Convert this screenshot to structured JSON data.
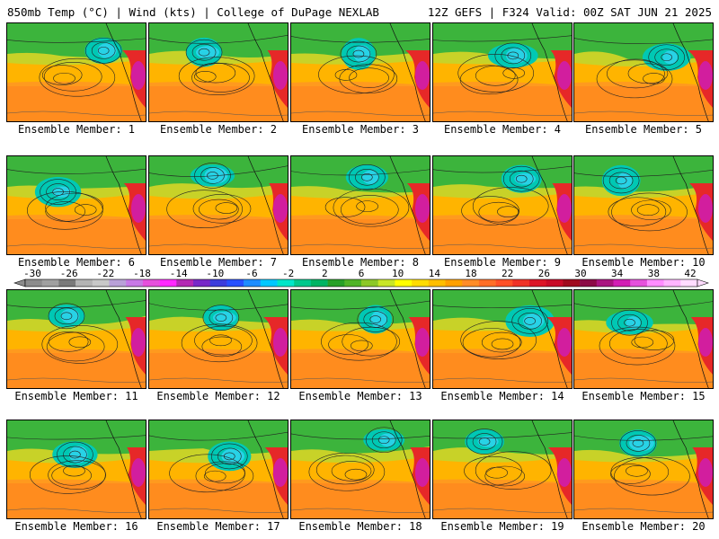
{
  "header": {
    "left_title": "850mb Temp (°C) | Wind (kts) | College of DuPage NEXLAB",
    "right_title": "12Z GEFS | F324 Valid: 00Z SAT JUN 21 2025"
  },
  "members": [
    "Ensemble Member: 1",
    "Ensemble Member: 2",
    "Ensemble Member: 3",
    "Ensemble Member: 4",
    "Ensemble Member: 5",
    "Ensemble Member: 6",
    "Ensemble Member: 7",
    "Ensemble Member: 8",
    "Ensemble Member: 9",
    "Ensemble Member: 10",
    "Ensemble Member: 11",
    "Ensemble Member: 12",
    "Ensemble Member: 13",
    "Ensemble Member: 14",
    "Ensemble Member: 15",
    "Ensemble Member: 16",
    "Ensemble Member: 17",
    "Ensemble Member: 18",
    "Ensemble Member: 19",
    "Ensemble Member: 20"
  ],
  "colorbar": {
    "labels": [
      "-30",
      "-26",
      "-22",
      "-18",
      "-14",
      "-10",
      "-6",
      "-2",
      "2",
      "6",
      "10",
      "14",
      "18",
      "22",
      "26",
      "30",
      "34",
      "38",
      "42"
    ],
    "colors": [
      "#8c8c8c",
      "#a0a0a0",
      "#7a7a7a",
      "#b4b4b4",
      "#c8c8c8",
      "#b9a0d8",
      "#c878e6",
      "#e650dc",
      "#ff28ff",
      "#b428b4",
      "#7828c8",
      "#3c3cdc",
      "#2850ff",
      "#1e8cff",
      "#00c8ff",
      "#00e6c8",
      "#00c88c",
      "#00b464",
      "#28a028",
      "#50b428",
      "#8cc828",
      "#c8e628",
      "#ffff00",
      "#ffdc00",
      "#ffbe00",
      "#ffa000",
      "#ff8c28",
      "#ff6e28",
      "#ff5028",
      "#f03228",
      "#dc1428",
      "#c80a28",
      "#a00a1e",
      "#8c0a46",
      "#aa1480",
      "#d21eb4",
      "#e650dc",
      "#ff8cff",
      "#ffb4ff",
      "#ffdcff"
    ]
  }
}
